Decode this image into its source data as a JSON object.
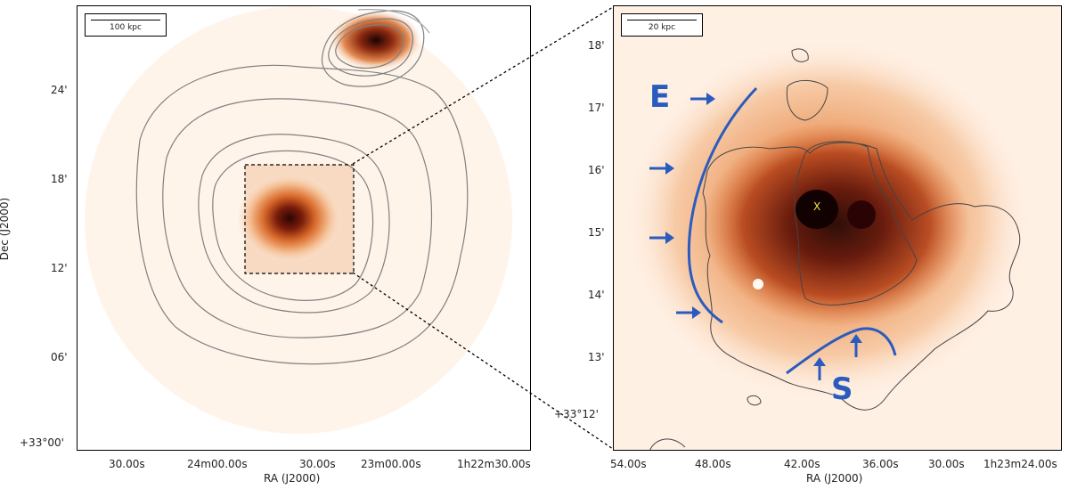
{
  "left_panel": {
    "scale_label": "100 kpc",
    "y_ticks": [
      "24'",
      "18'",
      "12'",
      "06'",
      "+33°00'"
    ],
    "x_ticks": [
      "30.00s",
      "24m00.00s",
      "30.00s",
      "23m00.00s",
      "1h22m30.00s"
    ],
    "x_axis_title": "RA (J2000)",
    "y_axis_title": "Dec (J2000)"
  },
  "right_panel": {
    "scale_label": "20 kpc",
    "y_ticks": [
      "18'",
      "17'",
      "16'",
      "15'",
      "14'",
      "13'",
      "+33°12'"
    ],
    "x_ticks": [
      "54.00s",
      "48.00s",
      "42.00s",
      "36.00s",
      "30.00s",
      "1h23m24.00s"
    ],
    "x_axis_title": "RA (J2000)",
    "annotations": {
      "east": "E",
      "south": "S",
      "center_marker": "X"
    }
  },
  "colors": {
    "arrows": "#2a5bbf",
    "contours": "#808080",
    "background": "#fff2e6"
  }
}
